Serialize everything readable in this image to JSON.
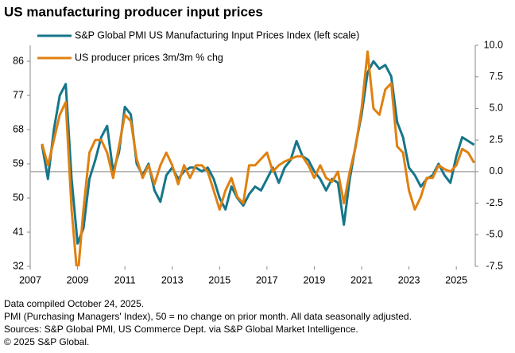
{
  "chart_data": {
    "type": "line",
    "title": "US manufacturing producer input prices",
    "x": [
      2007.5,
      2007.75,
      2008,
      2008.25,
      2008.5,
      2008.75,
      2009,
      2009.25,
      2009.5,
      2009.75,
      2010,
      2010.25,
      2010.5,
      2010.75,
      2011,
      2011.25,
      2011.5,
      2011.75,
      2012,
      2012.25,
      2012.5,
      2012.75,
      2013,
      2013.25,
      2013.5,
      2013.75,
      2014,
      2014.25,
      2014.5,
      2014.75,
      2015,
      2015.25,
      2015.5,
      2015.75,
      2016,
      2016.25,
      2016.5,
      2016.75,
      2017,
      2017.25,
      2017.5,
      2017.75,
      2018,
      2018.25,
      2018.5,
      2018.75,
      2019,
      2019.25,
      2019.5,
      2019.75,
      2020,
      2020.25,
      2020.5,
      2020.75,
      2021,
      2021.25,
      2021.5,
      2021.75,
      2022,
      2022.25,
      2022.5,
      2022.75,
      2023,
      2023.25,
      2023.5,
      2023.75,
      2024,
      2024.25,
      2024.5,
      2024.75,
      2025,
      2025.25,
      2025.5,
      2025.75
    ],
    "series": [
      {
        "name": "S&P Global PMI US Manufacturing Input Prices Index (left scale)",
        "color": "#16768a",
        "axis": "y",
        "values": [
          64,
          55,
          68,
          77,
          80,
          55,
          38,
          42,
          55,
          60,
          66,
          69,
          57,
          62,
          74,
          72,
          59,
          56,
          59,
          52,
          49,
          56,
          58,
          55,
          57,
          58,
          58,
          57,
          58,
          55,
          50,
          47,
          53,
          50,
          48,
          51,
          53,
          52,
          55,
          58,
          54,
          58,
          60,
          65,
          61,
          60,
          57,
          55,
          52,
          55,
          54,
          43,
          55,
          64,
          72,
          83,
          86,
          84,
          85,
          82,
          70,
          66,
          58,
          56,
          53,
          55,
          56,
          59,
          56,
          54,
          61,
          66,
          65,
          64
        ]
      },
      {
        "name": "US producer prices  3m/3m % chg",
        "color": "#e0800f",
        "axis": "y2",
        "values": [
          2.2,
          0.5,
          2.5,
          4.5,
          5.5,
          -3,
          -8.5,
          -3,
          1.5,
          2.5,
          2.5,
          1.5,
          -0.5,
          2,
          4.5,
          4,
          1,
          -0.5,
          0.5,
          -1,
          0.5,
          1.5,
          0.5,
          -1,
          0.5,
          -0.5,
          0.5,
          0.5,
          0,
          -1.5,
          -3,
          -1.5,
          -0.5,
          -2,
          -2.5,
          0.5,
          0.5,
          1,
          1.5,
          0,
          0.5,
          0.8,
          1,
          1.2,
          1.2,
          0.5,
          -0.5,
          0.5,
          -0.5,
          -0.8,
          0,
          -2.5,
          0,
          2,
          5,
          9.5,
          5,
          4.5,
          6.5,
          7,
          2,
          1.5,
          -1.5,
          -3,
          -2,
          -0.5,
          -0.5,
          0.5,
          0.2,
          0,
          0.5,
          1.8,
          1.5,
          0.7
        ]
      }
    ],
    "xlim": [
      2007,
      2025.8
    ],
    "xticks": [
      2007,
      2009,
      2011,
      2013,
      2015,
      2017,
      2019,
      2021,
      2023,
      2025
    ],
    "ylim": [
      32,
      90.2
    ],
    "yticks": [
      32,
      41,
      50,
      59,
      68,
      77,
      86
    ],
    "y2lim": [
      -7.5,
      10
    ],
    "y2ticks": [
      {
        "value": 10,
        "label": "10.0"
      },
      7.5,
      {
        "value": 5,
        "label": "5.0"
      },
      2.5,
      {
        "value": 0,
        "label": "0.0"
      },
      -2.5,
      {
        "value": -5,
        "label": "-5.0"
      },
      -7.5
    ],
    "legend": "top-left"
  },
  "footnotes": [
    "Data compiled October 24, 2025.",
    "PMI (Purchasing Managers' Index), 50 = no change on prior month. All data seasonally adjusted.",
    "Sources: S&P Global PMI, US Commerce Dept. via S&P Global Market Intelligence.",
    "© 2025 S&P Global."
  ]
}
